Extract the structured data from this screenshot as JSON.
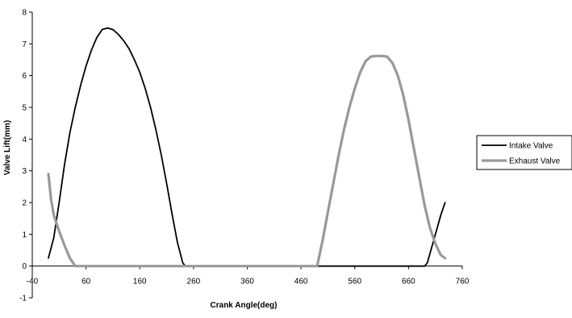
{
  "chart_data": {
    "type": "line",
    "title": "",
    "xlabel": "Crank Angle(deg)",
    "ylabel": "Valve Lift(mm)",
    "xlim": [
      -40,
      760
    ],
    "ylim": [
      -1,
      8
    ],
    "x_ticks": [
      -40,
      60,
      160,
      260,
      360,
      460,
      560,
      660,
      760
    ],
    "y_ticks": [
      -1,
      0,
      1,
      2,
      3,
      4,
      5,
      6,
      7,
      8
    ],
    "grid": false,
    "legend_position": "right",
    "series": [
      {
        "name": "Intake Valve",
        "color": "#000000",
        "points": [
          [
            -10,
            0.25
          ],
          [
            0,
            0.9
          ],
          [
            10,
            2.0
          ],
          [
            20,
            3.2
          ],
          [
            30,
            4.2
          ],
          [
            40,
            5.0
          ],
          [
            50,
            5.7
          ],
          [
            60,
            6.3
          ],
          [
            70,
            6.8
          ],
          [
            80,
            7.2
          ],
          [
            90,
            7.45
          ],
          [
            100,
            7.5
          ],
          [
            110,
            7.45
          ],
          [
            120,
            7.3
          ],
          [
            130,
            7.1
          ],
          [
            140,
            6.85
          ],
          [
            150,
            6.5
          ],
          [
            160,
            6.1
          ],
          [
            170,
            5.6
          ],
          [
            180,
            5.0
          ],
          [
            190,
            4.3
          ],
          [
            200,
            3.5
          ],
          [
            210,
            2.6
          ],
          [
            220,
            1.65
          ],
          [
            230,
            0.75
          ],
          [
            240,
            0.1
          ],
          [
            245,
            0
          ],
          [
            680,
            0
          ],
          [
            690,
            0
          ],
          [
            695,
            0.1
          ],
          [
            700,
            0.4
          ],
          [
            710,
            1.0
          ],
          [
            720,
            1.6
          ],
          [
            728,
            2.0
          ]
        ]
      },
      {
        "name": "Exhaust Valve",
        "color": "#999999",
        "points": [
          [
            -10,
            2.9
          ],
          [
            -5,
            2.1
          ],
          [
            0,
            1.6
          ],
          [
            10,
            1.1
          ],
          [
            20,
            0.65
          ],
          [
            30,
            0.25
          ],
          [
            40,
            0
          ],
          [
            490,
            0
          ],
          [
            500,
            0.8
          ],
          [
            510,
            1.7
          ],
          [
            520,
            2.6
          ],
          [
            530,
            3.5
          ],
          [
            540,
            4.3
          ],
          [
            550,
            5.0
          ],
          [
            560,
            5.6
          ],
          [
            570,
            6.1
          ],
          [
            580,
            6.45
          ],
          [
            590,
            6.6
          ],
          [
            600,
            6.62
          ],
          [
            610,
            6.62
          ],
          [
            620,
            6.6
          ],
          [
            630,
            6.4
          ],
          [
            640,
            6.0
          ],
          [
            650,
            5.4
          ],
          [
            660,
            4.6
          ],
          [
            670,
            3.7
          ],
          [
            680,
            2.8
          ],
          [
            690,
            1.9
          ],
          [
            700,
            1.2
          ],
          [
            710,
            0.7
          ],
          [
            720,
            0.35
          ],
          [
            728,
            0.25
          ]
        ]
      }
    ]
  }
}
